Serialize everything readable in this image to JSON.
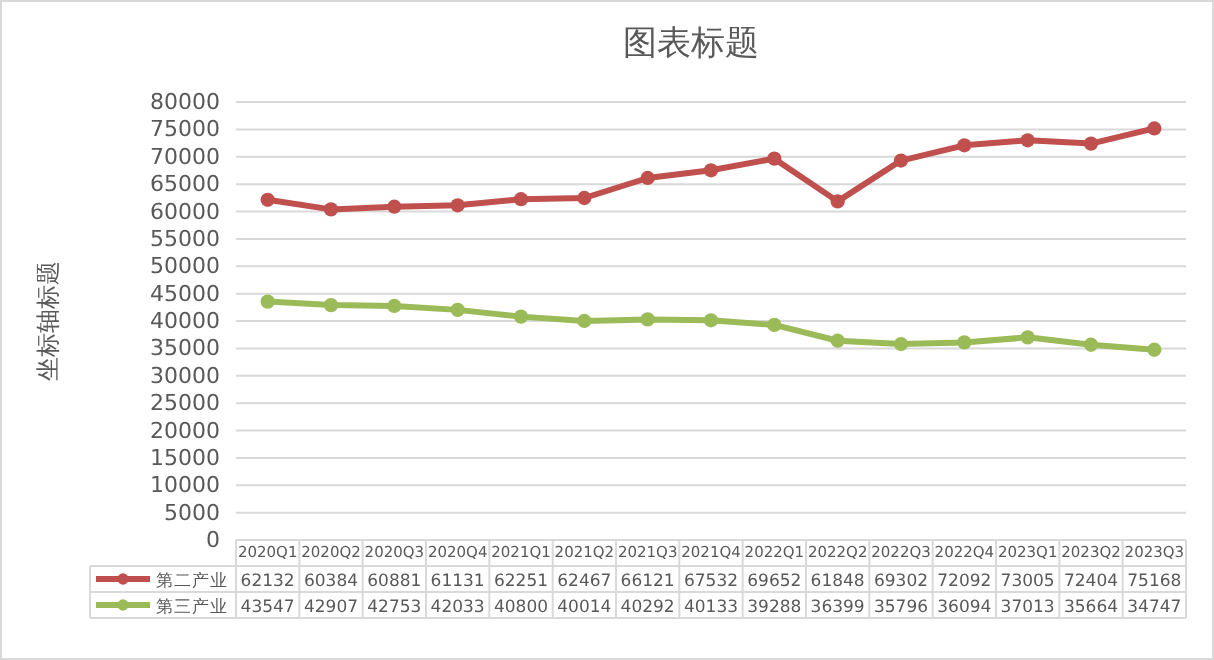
{
  "chart_data": {
    "type": "line",
    "title": "图表标题",
    "ylabel": "坐标轴标题",
    "categories": [
      "2020Q1",
      "2020Q2",
      "2020Q3",
      "2020Q4",
      "2021Q1",
      "2021Q2",
      "2021Q3",
      "2021Q4",
      "2022Q1",
      "2022Q2",
      "2022Q3",
      "2022Q4",
      "2023Q1",
      "2023Q2",
      "2023Q3"
    ],
    "series": [
      {
        "name": "第二产业",
        "color": "#c0504d",
        "values": [
          62132,
          60384,
          60881,
          61131,
          62251,
          62467,
          66121,
          67532,
          69652,
          61848,
          69302,
          72092,
          73005,
          72404,
          75168
        ]
      },
      {
        "name": "第三产业",
        "color": "#9bbb59",
        "values": [
          43547,
          42907,
          42753,
          42033,
          40800,
          40014,
          40292,
          40133,
          39288,
          36399,
          35796,
          36094,
          37013,
          35664,
          34747
        ]
      }
    ],
    "ylim": [
      0,
      80000
    ],
    "yticks": [
      0,
      5000,
      10000,
      15000,
      20000,
      25000,
      30000,
      35000,
      40000,
      45000,
      50000,
      55000,
      60000,
      65000,
      70000,
      75000,
      80000
    ],
    "grid": "y",
    "legend": "bottom",
    "marker": "circle",
    "line_style": "solid",
    "data_labels": true
  }
}
